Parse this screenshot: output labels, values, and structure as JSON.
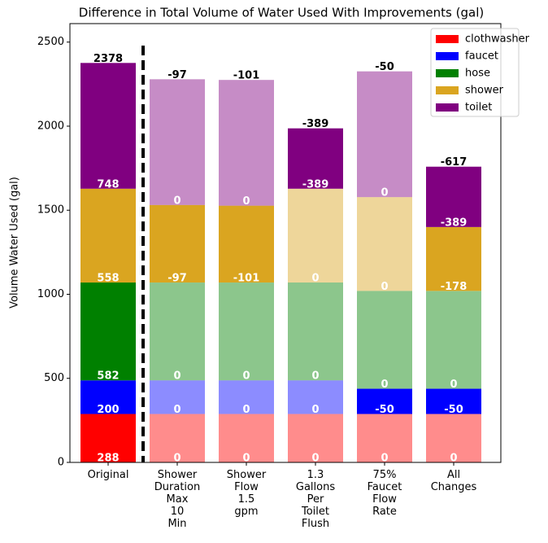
{
  "chart_data": {
    "type": "bar",
    "stacked": true,
    "title": "Difference in Total Volume of Water Used With Improvements (gal)",
    "y_label": "Volume Water Used (gal)",
    "categories": [
      "Original",
      "Shower\nDuration\nMax\n10\nMin",
      "Shower\nFlow\n1.5\ngpm",
      "1.3\nGallons\nPer\nToilet\nFlush",
      "75%\nFaucet\nFlow\nRate",
      "All\nChanges"
    ],
    "ylim": [
      0,
      2610
    ],
    "yticks": [
      0,
      500,
      1000,
      1500,
      2000,
      2500
    ],
    "series": [
      {
        "name": "clothwasher",
        "color": "#ff0000",
        "original": 288,
        "changes": [
          0,
          0,
          0,
          0,
          0
        ]
      },
      {
        "name": "faucet",
        "color": "#0000ff",
        "original": 200,
        "changes": [
          0,
          0,
          0,
          -50,
          -50
        ]
      },
      {
        "name": "hose",
        "color": "#008000",
        "original": 582,
        "changes": [
          0,
          0,
          0,
          0,
          0
        ]
      },
      {
        "name": "shower",
        "color": "#daa520",
        "original": 558,
        "changes": [
          -97,
          -101,
          0,
          0,
          -178
        ]
      },
      {
        "name": "toilet",
        "color": "#800080",
        "original": 748,
        "changes": [
          0,
          0,
          -389,
          0,
          -389
        ]
      }
    ],
    "top_labels": [
      2378,
      -97,
      -101,
      -389,
      -50,
      -617
    ],
    "legend": "upper right"
  }
}
